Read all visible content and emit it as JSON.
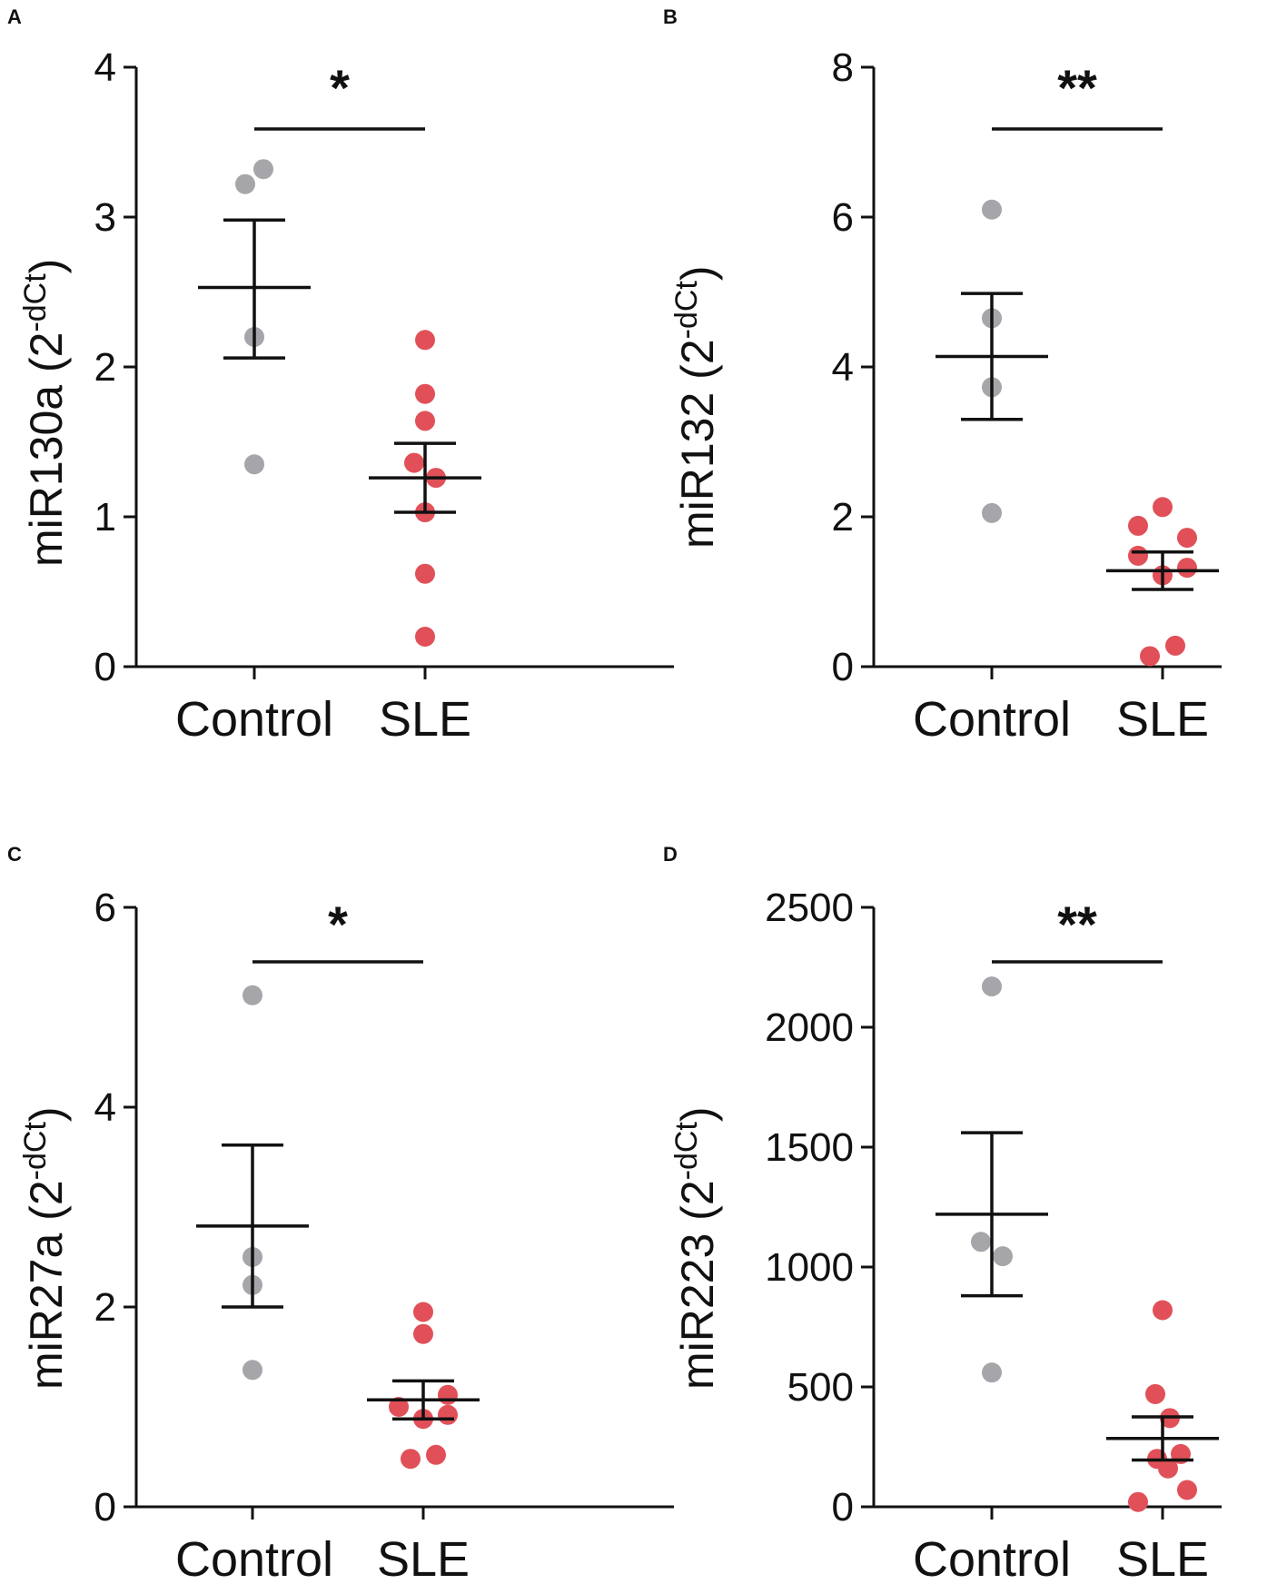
{
  "colors": {
    "control": "#a5a5aa",
    "sle": "#e15058",
    "ink": "#111111"
  },
  "chart_data": [
    {
      "type": "scatter",
      "panel": "A",
      "ylabel_main": "miR130a (2",
      "ylabel_sup": "-dCt",
      "ylabel_close": ")",
      "categories": [
        "Control",
        "SLE"
      ],
      "ylim": [
        0,
        4
      ],
      "yticks": [
        0,
        1,
        2,
        3,
        4
      ],
      "yticklabels": [
        "0",
        "1",
        "2",
        "3",
        "4"
      ],
      "significance": "*",
      "groups": [
        {
          "name": "Control",
          "mean": 2.53,
          "sem_low": 2.06,
          "sem_high": 2.98,
          "points": [
            {
              "x": -0.1,
              "y": 3.22
            },
            {
              "x": 0.1,
              "y": 3.32
            },
            {
              "x": 0.0,
              "y": 2.2
            },
            {
              "x": 0.0,
              "y": 1.35
            }
          ]
        },
        {
          "name": "SLE",
          "mean": 1.26,
          "sem_low": 1.03,
          "sem_high": 1.49,
          "points": [
            {
              "x": 0.0,
              "y": 2.18
            },
            {
              "x": 0.0,
              "y": 1.82
            },
            {
              "x": 0.0,
              "y": 1.64
            },
            {
              "x": -0.12,
              "y": 1.36
            },
            {
              "x": 0.12,
              "y": 1.26
            },
            {
              "x": 0.0,
              "y": 1.03
            },
            {
              "x": 0.0,
              "y": 0.62
            },
            {
              "x": 0.0,
              "y": 0.2
            }
          ]
        }
      ]
    },
    {
      "type": "scatter",
      "panel": "B",
      "ylabel_main": "miR132 (2",
      "ylabel_sup": "-dCt",
      "ylabel_close": ")",
      "categories": [
        "Control",
        "SLE"
      ],
      "ylim": [
        0,
        8
      ],
      "yticks": [
        0,
        2,
        4,
        6,
        8
      ],
      "yticklabels": [
        "0",
        "2",
        "4",
        "6",
        "8"
      ],
      "significance": "**",
      "groups": [
        {
          "name": "Control",
          "mean": 4.14,
          "sem_low": 3.3,
          "sem_high": 4.98,
          "points": [
            {
              "x": 0.0,
              "y": 6.1
            },
            {
              "x": 0.0,
              "y": 4.65
            },
            {
              "x": 0.0,
              "y": 3.73
            },
            {
              "x": 0.0,
              "y": 2.05
            }
          ]
        },
        {
          "name": "SLE",
          "mean": 1.28,
          "sem_low": 1.03,
          "sem_high": 1.53,
          "points": [
            {
              "x": 0.0,
              "y": 2.13
            },
            {
              "x": -0.27,
              "y": 1.88
            },
            {
              "x": 0.27,
              "y": 1.72
            },
            {
              "x": -0.27,
              "y": 1.48
            },
            {
              "x": 0.27,
              "y": 1.32
            },
            {
              "x": 0.0,
              "y": 1.22
            },
            {
              "x": 0.14,
              "y": 0.28
            },
            {
              "x": -0.14,
              "y": 0.14
            }
          ]
        }
      ]
    },
    {
      "type": "scatter",
      "panel": "C",
      "ylabel_main": "miR27a (2",
      "ylabel_sup": "-dCt",
      "ylabel_close": ")",
      "categories": [
        "Control",
        "SLE"
      ],
      "ylim": [
        0,
        6
      ],
      "yticks": [
        0,
        2,
        4,
        6
      ],
      "yticklabels": [
        "0",
        "2",
        "4",
        "6"
      ],
      "significance": "*",
      "groups": [
        {
          "name": "Control",
          "mean": 2.81,
          "sem_low": 2.0,
          "sem_high": 3.62,
          "points": [
            {
              "x": 0.0,
              "y": 5.12
            },
            {
              "x": 0.0,
              "y": 2.5
            },
            {
              "x": 0.0,
              "y": 2.22
            },
            {
              "x": 0.0,
              "y": 1.37
            }
          ]
        },
        {
          "name": "SLE",
          "mean": 1.07,
          "sem_low": 0.88,
          "sem_high": 1.26,
          "points": [
            {
              "x": 0.0,
              "y": 1.95
            },
            {
              "x": 0.0,
              "y": 1.73
            },
            {
              "x": 0.27,
              "y": 1.12
            },
            {
              "x": -0.27,
              "y": 1.0
            },
            {
              "x": 0.27,
              "y": 0.92
            },
            {
              "x": 0.0,
              "y": 0.88
            },
            {
              "x": 0.14,
              "y": 0.52
            },
            {
              "x": -0.14,
              "y": 0.48
            }
          ]
        }
      ]
    },
    {
      "type": "scatter",
      "panel": "D",
      "ylabel_main": "miR223 (2",
      "ylabel_sup": "-dCt",
      "ylabel_close": ")",
      "categories": [
        "Control",
        "SLE"
      ],
      "ylim": [
        0,
        2500
      ],
      "yticks": [
        0,
        500,
        1000,
        1500,
        2000,
        2500
      ],
      "yticklabels": [
        "0",
        "500",
        "1000",
        "1500",
        "2000",
        "2500"
      ],
      "significance": "**",
      "groups": [
        {
          "name": "Control",
          "mean": 1220,
          "sem_low": 880,
          "sem_high": 1560,
          "points": [
            {
              "x": 0.0,
              "y": 2170
            },
            {
              "x": -0.12,
              "y": 1105
            },
            {
              "x": 0.12,
              "y": 1045
            },
            {
              "x": 0.0,
              "y": 560
            }
          ]
        },
        {
          "name": "SLE",
          "mean": 285,
          "sem_low": 195,
          "sem_high": 375,
          "points": [
            {
              "x": 0.0,
              "y": 820
            },
            {
              "x": -0.08,
              "y": 470
            },
            {
              "x": 0.08,
              "y": 370
            },
            {
              "x": 0.2,
              "y": 220
            },
            {
              "x": -0.06,
              "y": 200
            },
            {
              "x": 0.06,
              "y": 160
            },
            {
              "x": 0.27,
              "y": 70
            },
            {
              "x": -0.27,
              "y": 20
            }
          ]
        }
      ]
    }
  ]
}
